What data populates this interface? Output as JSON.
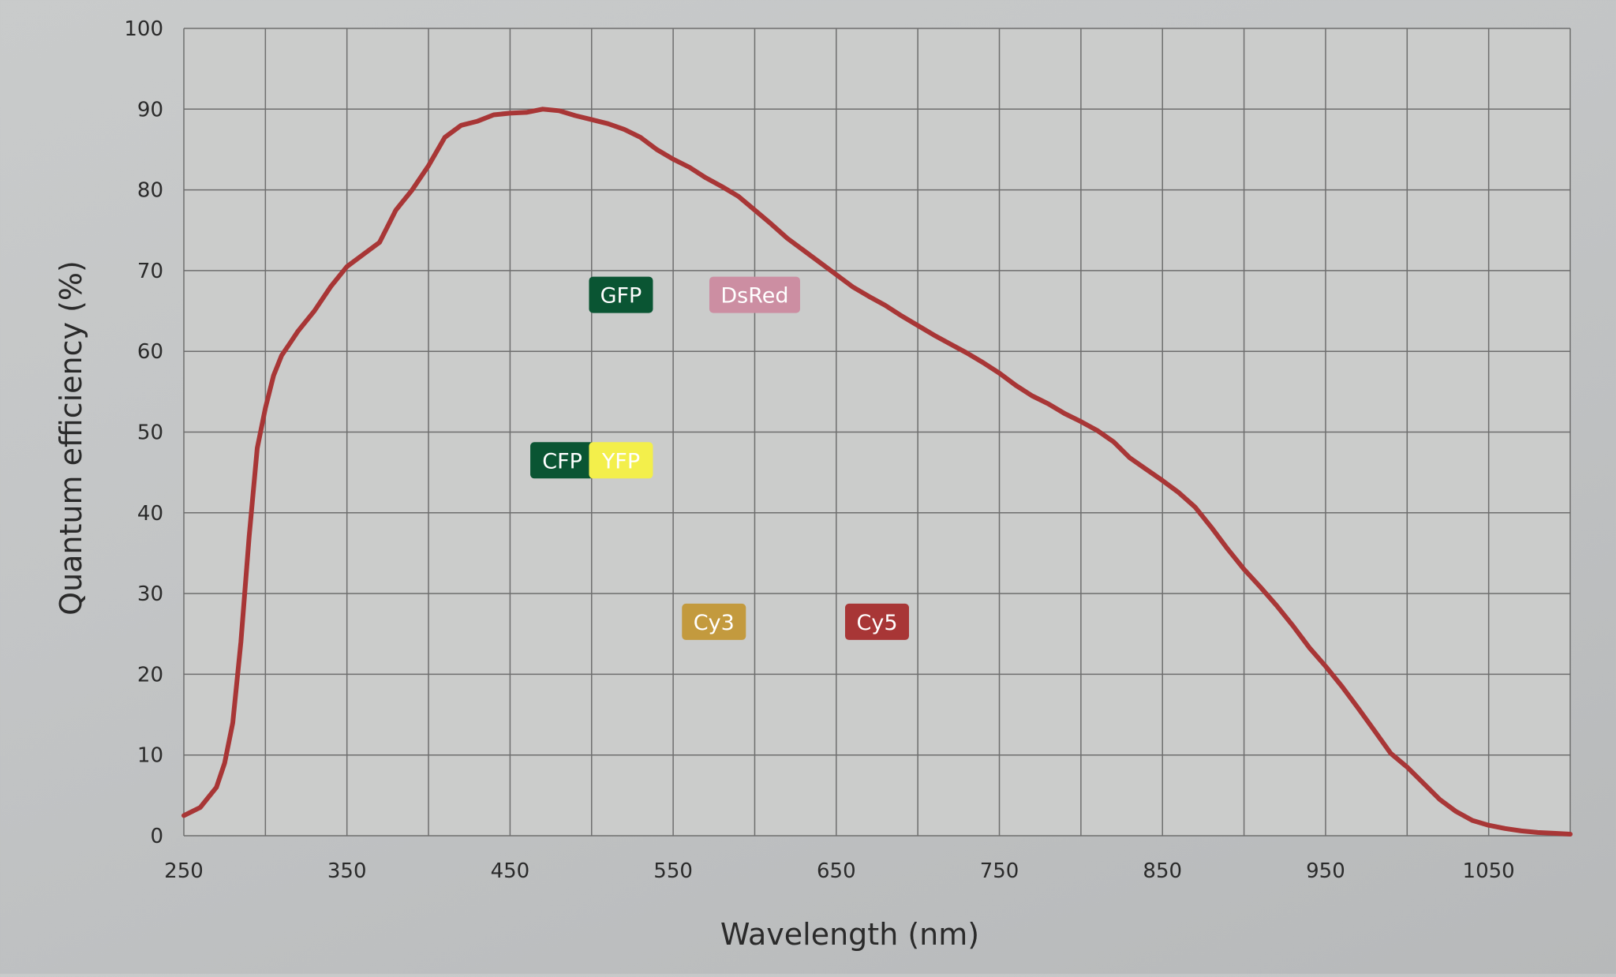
{
  "chart_data": {
    "type": "line",
    "title": "",
    "xlabel": "Wavelength (nm)",
    "ylabel": "Quantum efficiency (%)",
    "xlim": [
      250,
      1100
    ],
    "ylim": [
      0,
      100
    ],
    "grid": true,
    "x_ticks": [
      250,
      350,
      450,
      550,
      650,
      750,
      850,
      950,
      1050
    ],
    "y_ticks": [
      0,
      10,
      20,
      30,
      40,
      50,
      60,
      70,
      80,
      90,
      100
    ],
    "series": [
      {
        "color": "#a83636",
        "x": [
          250,
          260,
          270,
          275,
          280,
          285,
          290,
          295,
          300,
          305,
          310,
          315,
          320,
          330,
          340,
          350,
          360,
          370,
          380,
          390,
          400,
          410,
          420,
          430,
          440,
          450,
          460,
          470,
          480,
          490,
          500,
          510,
          520,
          530,
          540,
          550,
          560,
          570,
          580,
          590,
          600,
          610,
          620,
          630,
          640,
          650,
          660,
          670,
          680,
          690,
          700,
          710,
          720,
          730,
          740,
          750,
          760,
          770,
          780,
          790,
          800,
          810,
          820,
          830,
          840,
          850,
          860,
          870,
          880,
          890,
          900,
          910,
          920,
          930,
          940,
          950,
          960,
          970,
          980,
          990,
          1000,
          1010,
          1020,
          1030,
          1040,
          1050,
          1060,
          1070,
          1080,
          1090,
          1100
        ],
        "y": [
          2.5,
          3.5,
          6,
          9,
          14,
          24,
          37,
          48,
          53,
          57,
          59.5,
          61,
          62.5,
          65,
          68,
          70.5,
          72,
          73.5,
          77.5,
          80,
          83,
          86.5,
          88,
          88.5,
          89.3,
          89.5,
          89.6,
          90,
          89.8,
          89.2,
          88.7,
          88.2,
          87.5,
          86.5,
          85,
          83.8,
          82.8,
          81.5,
          80.4,
          79.2,
          77.5,
          75.8,
          74,
          72.5,
          71,
          69.5,
          68,
          66.8,
          65.7,
          64.4,
          63.2,
          62,
          60.9,
          59.8,
          58.6,
          57.3,
          55.8,
          54.5,
          53.5,
          52.3,
          51.3,
          50.2,
          48.8,
          46.8,
          45.4,
          44,
          42.5,
          40.7,
          38.2,
          35.5,
          33,
          30.8,
          28.5,
          26,
          23.3,
          21,
          18.5,
          15.8,
          13,
          10.2,
          8.5,
          6.5,
          4.5,
          3,
          1.9,
          1.3,
          0.9,
          0.6,
          0.4,
          0.3,
          0.2
        ]
      }
    ],
    "markers": [
      {
        "label": "GFP",
        "x": 518,
        "y": 67,
        "color": "#0a5533"
      },
      {
        "label": "DsRed",
        "x": 600,
        "y": 67,
        "color": "#cc8ea2"
      },
      {
        "label": "CFP",
        "x": 482,
        "y": 46.5,
        "color": "#0a5533"
      },
      {
        "label": "YFP",
        "x": 518,
        "y": 46.5,
        "color": "#f3ef4b",
        "text_color": "#2a2a2a"
      },
      {
        "label": "Cy3",
        "x": 575,
        "y": 26.5,
        "color": "#c39a3e"
      },
      {
        "label": "Cy5",
        "x": 675,
        "y": 26.5,
        "color": "#a83636"
      }
    ]
  }
}
